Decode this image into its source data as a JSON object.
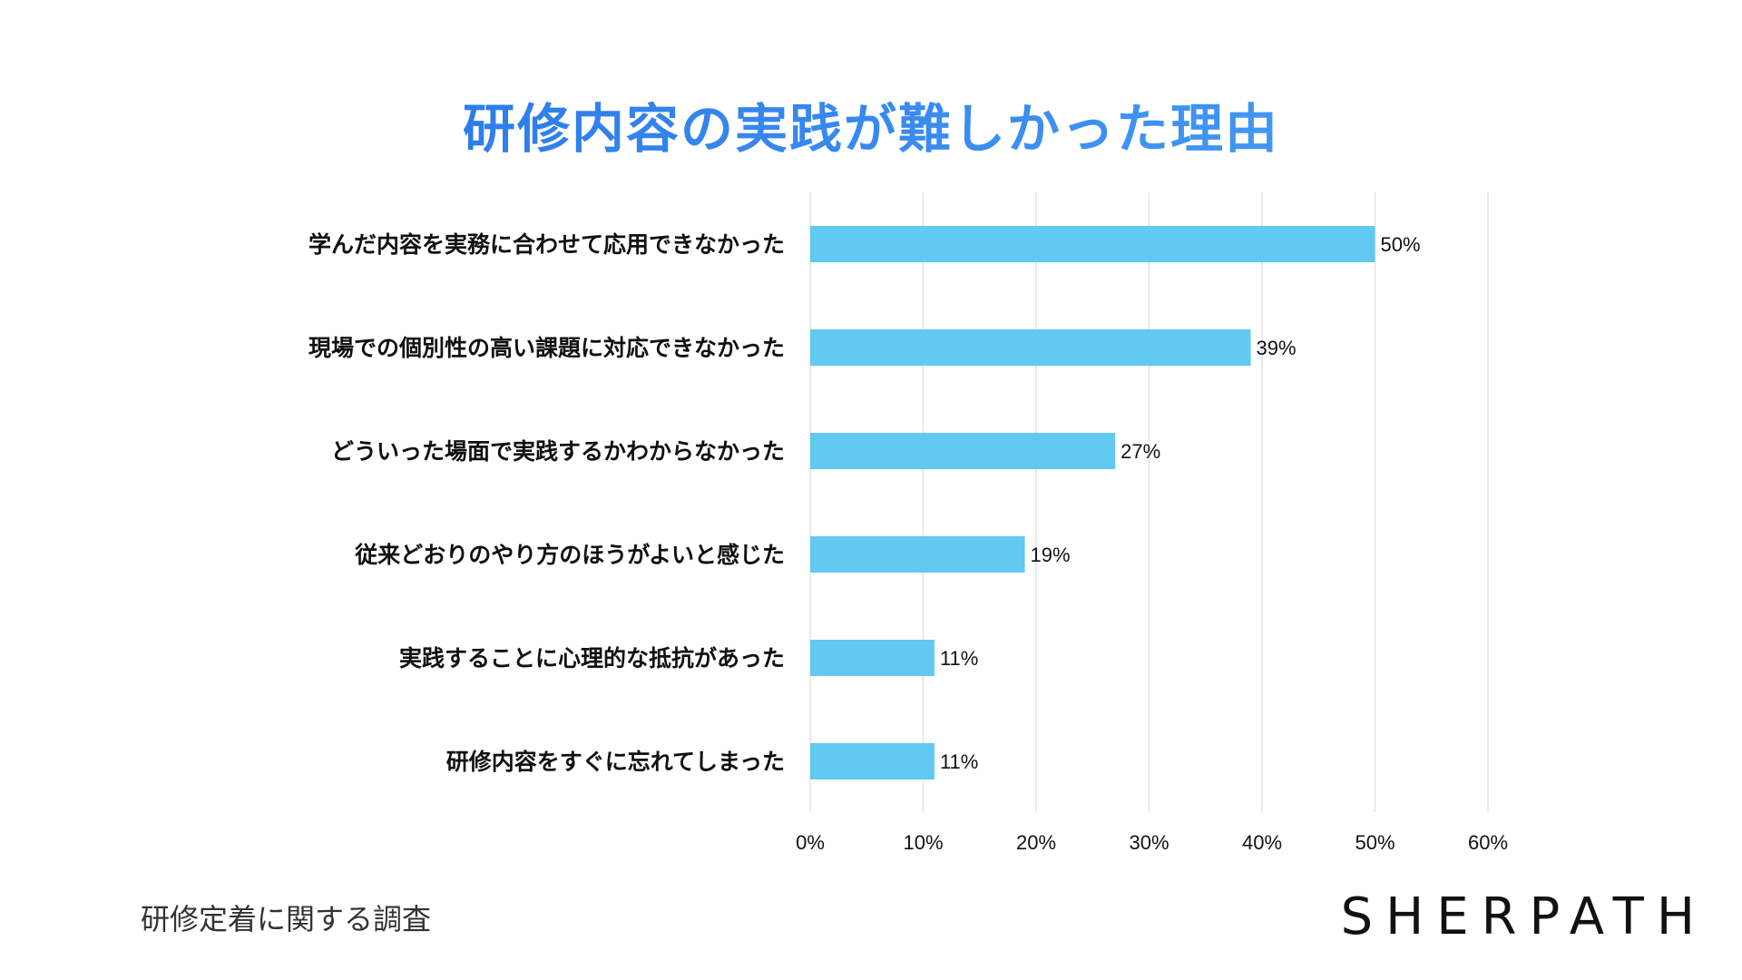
{
  "chart_data": {
    "type": "bar",
    "orientation": "horizontal",
    "title": "研修内容の実践が難しかった理由",
    "categories": [
      "学んだ内容を実務に合わせて応用できなかった",
      "現場での個別性の高い課題に対応できなかった",
      "どういった場面で実践するかわからなかった",
      "従来どおりのやり方のほうがよいと感じた",
      "実践することに心理的な抵抗があった",
      "研修内容をすぐに忘れてしまった"
    ],
    "values": [
      50,
      39,
      27,
      19,
      11,
      11
    ],
    "value_labels": [
      "50%",
      "39%",
      "27%",
      "19%",
      "11%",
      "11%"
    ],
    "xlim": [
      0,
      60
    ],
    "xticks": [
      "0%",
      "10%",
      "20%",
      "30%",
      "40%",
      "50%",
      "60%"
    ],
    "xticks_values": [
      0,
      10,
      20,
      30,
      40,
      50,
      60
    ],
    "grid": true,
    "bar_color": "#62c9f3",
    "grid_color": "#e4e4e4"
  },
  "footer": {
    "note": "研修定着に関する調査",
    "brand": "SHERPATH"
  },
  "colors": {
    "title_start": "#1f6fe6",
    "title_end": "#4aa6f2"
  }
}
